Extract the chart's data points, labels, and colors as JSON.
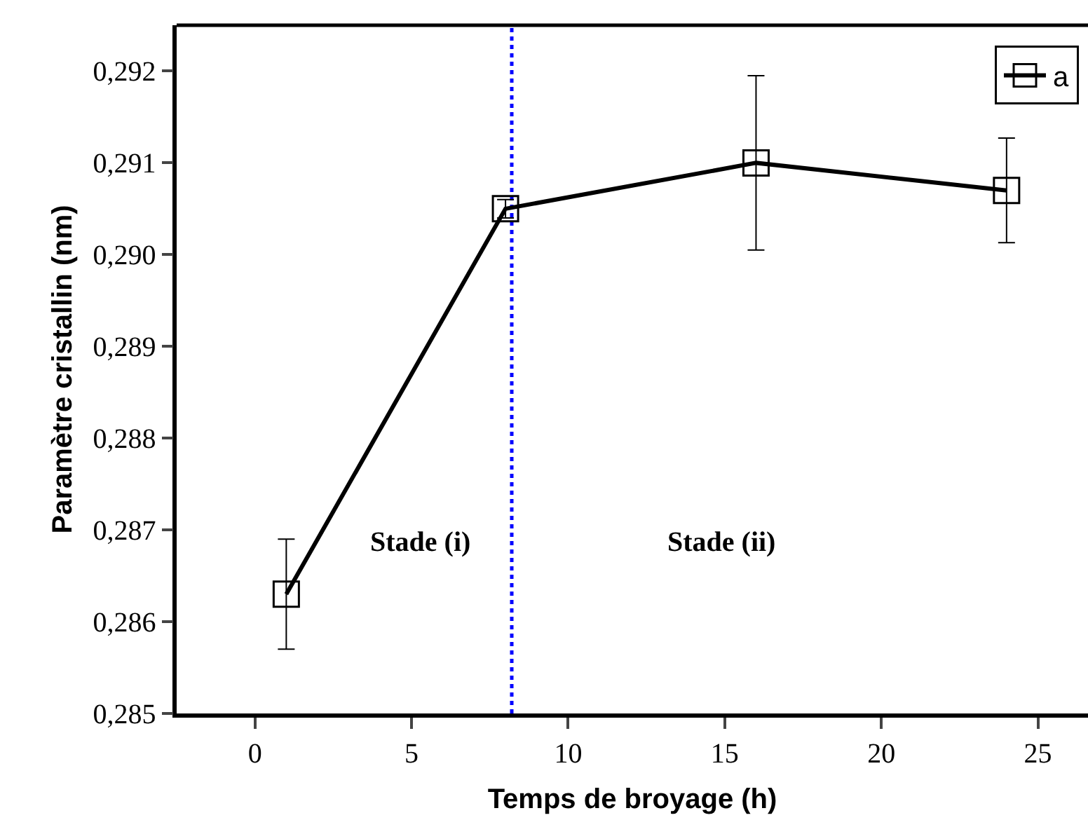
{
  "chart_data": {
    "type": "line",
    "xlabel": "Temps de broyage (h)",
    "ylabel": "Paramètre cristallin (nm)",
    "x": [
      1,
      8,
      16,
      24
    ],
    "series": [
      {
        "name": "a",
        "color": "#000000",
        "values": [
          0.2863,
          0.2905,
          0.291,
          0.2907
        ],
        "errors": [
          0.0006,
          0.0001,
          0.00095,
          0.00057
        ]
      }
    ],
    "xlim": [
      -2.5,
      26.6
    ],
    "xticks": [
      0,
      5,
      10,
      15,
      20,
      25
    ],
    "ylim": [
      0.285,
      0.2925
    ],
    "yticks": [
      {
        "value": 0.285,
        "label": "0,285"
      },
      {
        "value": 0.286,
        "label": "0,286"
      },
      {
        "value": 0.287,
        "label": "0,287"
      },
      {
        "value": 0.288,
        "label": "0,288"
      },
      {
        "value": 0.289,
        "label": "0,289"
      },
      {
        "value": 0.29,
        "label": "0,290"
      },
      {
        "value": 0.291,
        "label": "0,291"
      },
      {
        "value": 0.292,
        "label": "0,292"
      }
    ],
    "ref_lines": [
      {
        "axis": "x",
        "value": 8.2,
        "color": "#0000ff",
        "line_style": "dotted"
      }
    ],
    "annotations": [
      "Stade (i)",
      "Stade (ii)"
    ],
    "marker": "square",
    "line_style": "solid",
    "legend": "top right",
    "grid": false
  }
}
